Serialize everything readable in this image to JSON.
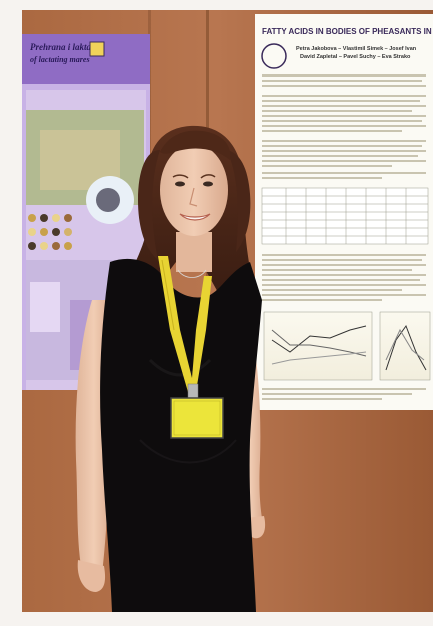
{
  "left_poster": {
    "title_line_1": "Prehrana i laktacija",
    "title_line_2": "of lactating mares"
  },
  "right_poster": {
    "title": "FATTY ACIDS IN BODIES OF PHEASANTS IN RE",
    "authors_line_1": "Petra Jakobova – Vlastimil Simek – Josef Ivan",
    "authors_line_2": "David Zapletal – Pavel Suchy – Eva Strako"
  }
}
